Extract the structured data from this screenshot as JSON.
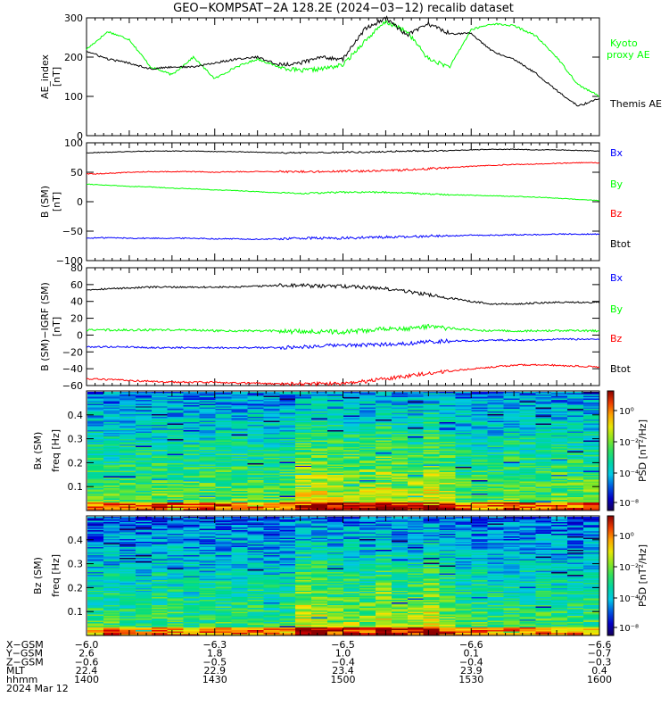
{
  "title": "GEO−KOMPSAT−2A 128.2E (2024−03−12) recalib dataset",
  "x_ticks": [
    "1400",
    "1430",
    "1500",
    "1530",
    "1600"
  ],
  "ephemeris": {
    "date": "2024 Mar 12",
    "rows": [
      {
        "label": "X−GSM",
        "values": [
          "−6.0",
          "−6.3",
          "−6.5",
          "−6.6",
          "−6.6"
        ]
      },
      {
        "label": "Y−GSM",
        "values": [
          "2.6",
          "1.8",
          "1.0",
          "0.1",
          "−0.7"
        ]
      },
      {
        "label": "Z−GSM",
        "values": [
          "−0.6",
          "−0.5",
          "−0.4",
          "−0.4",
          "−0.3"
        ]
      },
      {
        "label": "MLT",
        "values": [
          "22.4",
          "22.9",
          "23.4",
          "23.9",
          "0.4"
        ]
      },
      {
        "label": "hhmm",
        "values": [
          "1400",
          "1430",
          "1500",
          "1530",
          "1600"
        ]
      }
    ]
  },
  "colors": {
    "black": "#000000",
    "red": "#ff0000",
    "green": "#00ff00",
    "blue": "#0000ff"
  },
  "chart_data": [
    {
      "type": "line",
      "ylabel": "AE_index",
      "yunit": "[nT]",
      "ylim": [
        0,
        300
      ],
      "yticks": [
        "0",
        "100",
        "200",
        "300"
      ],
      "x": [
        1400,
        1405,
        1410,
        1415,
        1420,
        1425,
        1430,
        1435,
        1440,
        1445,
        1450,
        1455,
        1500,
        1505,
        1510,
        1515,
        1520,
        1525,
        1530,
        1535,
        1540,
        1545,
        1550,
        1555,
        1600
      ],
      "series": [
        {
          "name": "Kyoto proxy AE",
          "legend": [
            "Kyoto",
            "proxy AE"
          ],
          "color": "green",
          "values": [
            220,
            265,
            245,
            175,
            155,
            200,
            145,
            175,
            195,
            175,
            165,
            170,
            180,
            240,
            290,
            265,
            195,
            175,
            270,
            285,
            280,
            255,
            200,
            130,
            100
          ]
        },
        {
          "name": "Themis AE",
          "legend": [
            "Themis AE"
          ],
          "color": "black",
          "values": [
            215,
            195,
            185,
            170,
            175,
            175,
            185,
            195,
            200,
            180,
            185,
            200,
            195,
            270,
            300,
            255,
            285,
            260,
            260,
            215,
            195,
            160,
            115,
            75,
            95
          ]
        }
      ]
    },
    {
      "type": "line",
      "ylabel": "B (SM)",
      "yunit": "[nT]",
      "ylim": [
        -100,
        100
      ],
      "yticks": [
        "−100",
        "−50",
        "0",
        "50",
        "100"
      ],
      "x": [
        1400,
        1405,
        1410,
        1415,
        1420,
        1425,
        1430,
        1435,
        1440,
        1445,
        1450,
        1455,
        1500,
        1505,
        1510,
        1515,
        1520,
        1525,
        1530,
        1535,
        1540,
        1545,
        1550,
        1555,
        1600
      ],
      "series": [
        {
          "name": "Bx",
          "color": "blue",
          "values": [
            -62,
            -61,
            -62,
            -62,
            -62,
            -62,
            -63,
            -63,
            -64,
            -63,
            -62,
            -62,
            -62,
            -61,
            -60,
            -60,
            -58,
            -58,
            -57,
            -57,
            -56,
            -56,
            -55,
            -55,
            -55
          ]
        },
        {
          "name": "By",
          "color": "green",
          "values": [
            30,
            28,
            26,
            25,
            23,
            22,
            20,
            19,
            17,
            15,
            14,
            15,
            16,
            16,
            16,
            15,
            13,
            12,
            11,
            10,
            9,
            8,
            6,
            4,
            2
          ]
        },
        {
          "name": "Bz",
          "color": "red",
          "values": [
            47,
            48,
            50,
            51,
            51,
            51,
            50,
            51,
            51,
            51,
            51,
            51,
            52,
            52,
            53,
            54,
            56,
            58,
            60,
            62,
            63,
            64,
            65,
            66,
            66
          ]
        },
        {
          "name": "Btot",
          "color": "black",
          "values": [
            83,
            84,
            85,
            86,
            86,
            86,
            85,
            85,
            84,
            83,
            83,
            83,
            84,
            84,
            85,
            86,
            86,
            87,
            88,
            89,
            89,
            88,
            88,
            87,
            86
          ]
        }
      ]
    },
    {
      "type": "line",
      "ylabel": "B (SM)−IGRF (SM)",
      "yunit": "[nT]",
      "ylim": [
        -60,
        80
      ],
      "yticks": [
        "−60",
        "−40",
        "−20",
        "0",
        "20",
        "40",
        "60",
        "80"
      ],
      "x": [
        1400,
        1405,
        1410,
        1415,
        1420,
        1425,
        1430,
        1435,
        1440,
        1445,
        1450,
        1455,
        1500,
        1505,
        1510,
        1515,
        1520,
        1525,
        1530,
        1535,
        1540,
        1545,
        1550,
        1555,
        1600
      ],
      "series": [
        {
          "name": "Bx",
          "color": "blue",
          "values": [
            -14,
            -14,
            -14,
            -15,
            -15,
            -15,
            -15,
            -15,
            -15,
            -15,
            -14,
            -13,
            -12,
            -12,
            -11,
            -10,
            -8,
            -7,
            -7,
            -6,
            -6,
            -6,
            -5,
            -5,
            -5
          ]
        },
        {
          "name": "By",
          "color": "green",
          "values": [
            6,
            6,
            6,
            6,
            6,
            6,
            5,
            5,
            5,
            5,
            4,
            4,
            4,
            5,
            7,
            8,
            10,
            8,
            6,
            5,
            5,
            5,
            5,
            5,
            5
          ]
        },
        {
          "name": "Bz",
          "color": "red",
          "values": [
            -52,
            -53,
            -54,
            -55,
            -56,
            -56,
            -56,
            -57,
            -57,
            -58,
            -58,
            -58,
            -57,
            -55,
            -52,
            -49,
            -45,
            -43,
            -40,
            -38,
            -36,
            -35,
            -36,
            -37,
            -38
          ]
        },
        {
          "name": "Btot",
          "color": "black",
          "values": [
            54,
            55,
            56,
            57,
            57,
            57,
            57,
            57,
            58,
            59,
            59,
            58,
            58,
            57,
            55,
            52,
            48,
            44,
            40,
            37,
            37,
            38,
            39,
            39,
            39
          ]
        }
      ]
    },
    {
      "type": "heatmap",
      "ylabel": "Bx (SM)",
      "yunit": "freq [Hz]",
      "ylim": [
        0,
        0.5
      ],
      "yticks": [
        "0.1",
        "0.2",
        "0.3",
        "0.4"
      ],
      "colorbar_label": "PSD [nT²/Hz]",
      "colorbar_ticks": [
        "10⁰",
        "10⁻²",
        "10⁻⁴",
        "10⁻⁸"
      ]
    },
    {
      "type": "heatmap",
      "ylabel": "Bz (SM)",
      "yunit": "freq [Hz]",
      "ylim": [
        0,
        0.5
      ],
      "yticks": [
        "0.1",
        "0.2",
        "0.3",
        "0.4"
      ],
      "colorbar_label": "PSD [nT²/Hz]",
      "colorbar_ticks": [
        "10⁰",
        "10⁻²",
        "10⁻⁴",
        "10⁻⁸"
      ]
    }
  ]
}
